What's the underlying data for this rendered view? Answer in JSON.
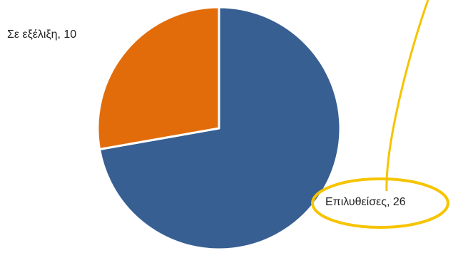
{
  "chart_data": {
    "type": "pie",
    "title": "",
    "slices": [
      {
        "label": "Επιλυθείσες",
        "value": 26,
        "color": "#375f92"
      },
      {
        "label": "Σε εξέλιξη",
        "value": 10,
        "color": "#e36c0a"
      }
    ],
    "data_labels": [
      {
        "text": "Επιλυθείσες, 26"
      },
      {
        "text": "Σε εξέλιξη, 10"
      }
    ],
    "highlight_color": "#f6c400",
    "slice_border_color": "#ffffff"
  }
}
